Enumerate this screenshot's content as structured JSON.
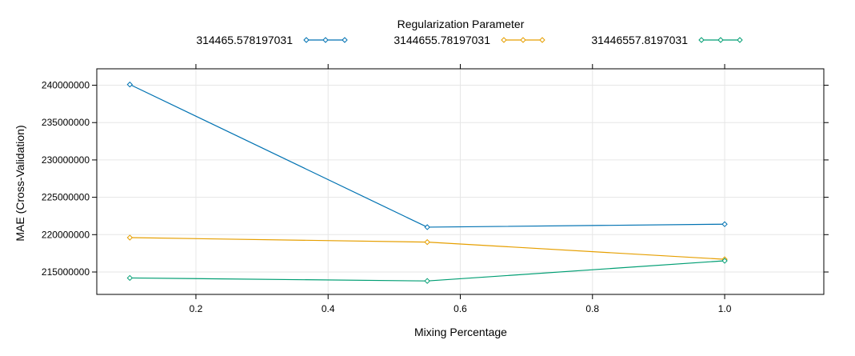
{
  "chart_data": {
    "type": "line",
    "legend": {
      "title": "Regularization Parameter",
      "position": "top"
    },
    "xlabel": "Mixing Percentage",
    "ylabel": "MAE (Cross-Validation)",
    "xlim": [
      0.05,
      1.15
    ],
    "ylim": [
      212000000,
      242200000
    ],
    "x_ticks": [
      0.2,
      0.4,
      0.6,
      0.8,
      1.0
    ],
    "x_tick_labels": [
      "0.2",
      "0.4",
      "0.6",
      "0.8",
      "1.0"
    ],
    "y_ticks": [
      215000000,
      220000000,
      225000000,
      230000000,
      235000000,
      240000000
    ],
    "y_tick_labels": [
      "215000000",
      "220000000",
      "225000000",
      "230000000",
      "235000000",
      "240000000"
    ],
    "grid": true,
    "x": [
      0.1,
      0.55,
      1.0
    ],
    "series": [
      {
        "name": "314465.578197031",
        "color": "#0072B2",
        "values": [
          240100000,
          221000000,
          221400000
        ]
      },
      {
        "name": "3144655.78197031",
        "color": "#E69F00",
        "values": [
          219600000,
          219000000,
          216700000
        ]
      },
      {
        "name": "31446557.8197031",
        "color": "#009E73",
        "values": [
          214200000,
          213800000,
          216500000
        ]
      }
    ]
  }
}
